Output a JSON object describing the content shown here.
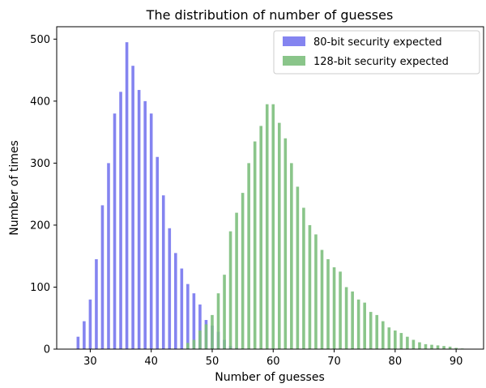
{
  "chart_data": {
    "type": "bar",
    "title": "The distribution of number of guesses",
    "xlabel": "Number of guesses",
    "ylabel": "Number of times",
    "xlim": [
      24.5,
      94.5
    ],
    "ylim": [
      0,
      520
    ],
    "xticks": [
      30,
      40,
      50,
      60,
      70,
      80,
      90
    ],
    "yticks": [
      0,
      100,
      200,
      300,
      400,
      500
    ],
    "grid": false,
    "legend_position": "top-right",
    "series": [
      {
        "name": "80-bit security expected",
        "color": "#7777ee",
        "x": [
          28,
          29,
          30,
          31,
          32,
          33,
          34,
          35,
          36,
          37,
          38,
          39,
          40,
          41,
          42,
          43,
          44,
          45,
          46,
          47,
          48,
          49,
          50,
          51,
          52,
          53,
          54
        ],
        "values": [
          20,
          45,
          80,
          145,
          232,
          300,
          380,
          415,
          495,
          457,
          418,
          400,
          380,
          310,
          248,
          195,
          155,
          130,
          105,
          90,
          72,
          47,
          38,
          28,
          15,
          5,
          2
        ]
      },
      {
        "name": "128-bit security expected",
        "color": "#7dbf7d",
        "x": [
          46,
          47,
          48,
          49,
          50,
          51,
          52,
          53,
          54,
          55,
          56,
          57,
          58,
          59,
          60,
          61,
          62,
          63,
          64,
          65,
          66,
          67,
          68,
          69,
          70,
          71,
          72,
          73,
          74,
          75,
          76,
          77,
          78,
          79,
          80,
          81,
          82,
          83,
          84,
          85,
          86,
          87,
          88,
          89,
          90,
          91
        ],
        "values": [
          10,
          15,
          30,
          40,
          55,
          90,
          120,
          190,
          220,
          252,
          300,
          335,
          360,
          395,
          395,
          365,
          340,
          300,
          262,
          228,
          200,
          185,
          160,
          145,
          132,
          125,
          100,
          93,
          80,
          75,
          60,
          55,
          45,
          35,
          30,
          26,
          20,
          15,
          11,
          8,
          7,
          6,
          5,
          4,
          2,
          1
        ]
      }
    ]
  }
}
